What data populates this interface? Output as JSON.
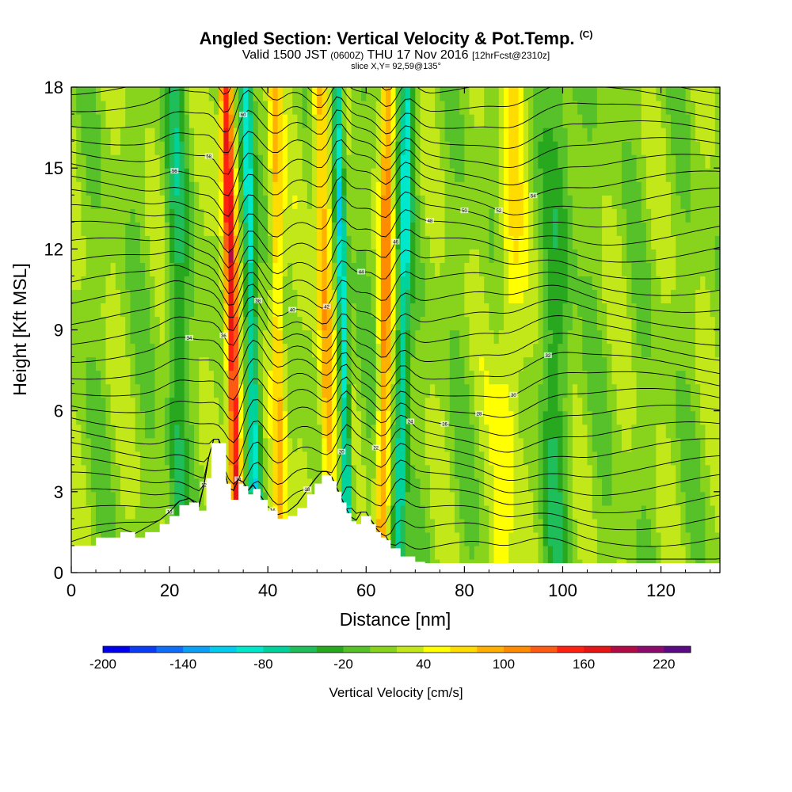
{
  "header": {
    "title": "Angled Section: Vertical Velocity & Pot.Temp.",
    "title_mark": "(C)",
    "valid_prefix": "Valid 1500 JST",
    "valid_z": "(0600Z)",
    "valid_date": "THU 17 Nov 2016",
    "forecast": "[12hrFcst@2310z]",
    "slice": "slice X,Y= 92,59@135°"
  },
  "chart_data": {
    "type": "heatmap",
    "title": "Angled Section: Vertical Velocity & Pot.Temp.",
    "xlabel": "Distance [nm]",
    "ylabel": "Height [Kft MSL]",
    "xlim": [
      0,
      132
    ],
    "ylim": [
      0,
      18
    ],
    "x_ticks": [
      0,
      20,
      40,
      60,
      80,
      100,
      120
    ],
    "y_ticks": [
      0,
      3,
      6,
      9,
      12,
      15,
      18
    ],
    "colorbar": {
      "label": "Vertical Velocity [cm/s]",
      "min": -200,
      "max": 240,
      "step": 20,
      "tick_labels": [
        "-200",
        "-140",
        "-80",
        "-20",
        "40",
        "100",
        "160",
        "220"
      ],
      "tick_values": [
        -200,
        -140,
        -80,
        -20,
        40,
        100,
        160,
        220
      ],
      "colors": [
        "#0000ee",
        "#0a3bf5",
        "#0f6ef8",
        "#0aa0f5",
        "#00ccee",
        "#00e8cc",
        "#00d29b",
        "#1fbe5a",
        "#28a81e",
        "#57c12a",
        "#88d41c",
        "#c3e81a",
        "#ffff00",
        "#ffdc00",
        "#ffb000",
        "#ff8c00",
        "#ff5a14",
        "#ff2014",
        "#e61414",
        "#b20a46",
        "#8c0a6e",
        "#5a0a82"
      ]
    },
    "terrain_profile": {
      "x": [
        0,
        5,
        10,
        13,
        15,
        18,
        20,
        22,
        24,
        26,
        27.5,
        28.5,
        30,
        31.5,
        32.5,
        34,
        35,
        36,
        37,
        38.5,
        40,
        42,
        44,
        46,
        48,
        49.5,
        51,
        52,
        53,
        54,
        55,
        56,
        57,
        58,
        59,
        60,
        61,
        62,
        63,
        64,
        65,
        67,
        70,
        72,
        80,
        100,
        120,
        132
      ],
      "height": [
        1.0,
        1.3,
        1.5,
        1.3,
        1.5,
        1.8,
        2.1,
        2.5,
        2.6,
        2.3,
        3.5,
        4.8,
        4.8,
        3.3,
        2.7,
        3.3,
        3.2,
        2.9,
        3.1,
        2.7,
        2.3,
        2.0,
        2.1,
        2.4,
        2.9,
        3.3,
        3.6,
        3.6,
        3.4,
        3.0,
        2.6,
        2.2,
        1.9,
        1.8,
        2.1,
        2.1,
        1.8,
        1.5,
        1.3,
        1.2,
        0.9,
        0.6,
        0.4,
        0.35,
        0.35,
        0.35,
        0.35,
        0.35
      ]
    },
    "updraft_features": [
      {
        "x0": 34.0,
        "x1": 31.5,
        "w": 1.3,
        "amp": 170
      },
      {
        "x0": 38.0,
        "x1": 35.5,
        "w": 1.4,
        "amp": -110
      },
      {
        "x0": 42.5,
        "x1": 41.5,
        "w": 1.4,
        "amp": 80
      },
      {
        "x0": 53.0,
        "x1": 50.5,
        "w": 1.6,
        "amp": 90
      },
      {
        "x0": 56.5,
        "x1": 54.0,
        "w": 1.1,
        "amp": -120
      },
      {
        "x0": 63.0,
        "x1": 64.5,
        "w": 1.3,
        "amp": 90
      },
      {
        "x0": 66.5,
        "x1": 68.5,
        "w": 1.4,
        "amp": -90
      },
      {
        "x0": 88.0,
        "x1": 90.0,
        "w": 2.5,
        "amp": 45
      },
      {
        "x0": 22.0,
        "x1": 21.0,
        "w": 2.0,
        "amp": -50
      },
      {
        "x0": 98.0,
        "x1": 100.0,
        "w": 3.0,
        "amp": -40
      }
    ],
    "isentropes": {
      "count": 30,
      "label_values": [
        "10",
        "12",
        "14",
        "16",
        "18",
        "20",
        "22",
        "24",
        "26",
        "28",
        "30",
        "32",
        "34",
        "36",
        "38",
        "40",
        "42",
        "44",
        "46",
        "48",
        "50",
        "52",
        "54",
        "56",
        "58",
        "60"
      ]
    }
  }
}
